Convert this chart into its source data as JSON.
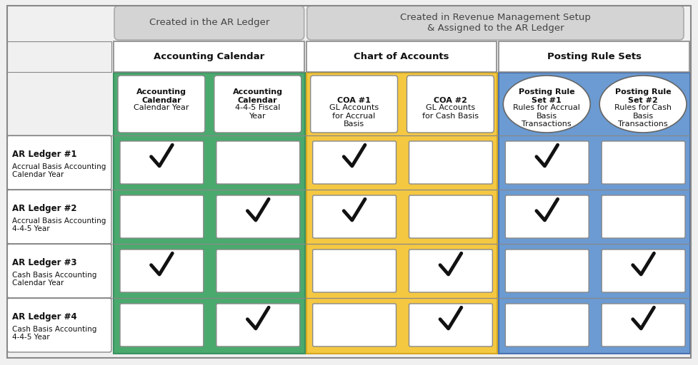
{
  "title_left": "Created in the AR Ledger",
  "title_right": "Created in Revenue Management Setup\n& Assigned to the AR Ledger",
  "section_headers": [
    "Accounting Calendar",
    "Chart of Accounts",
    "Posting Rule Sets"
  ],
  "col_bold": [
    "Accounting\nCalendar",
    "Accounting\nCalendar",
    "COA #1",
    "COA #2",
    "Posting Rule\nSet #1",
    "Posting Rule\nSet #2"
  ],
  "col_normal": [
    "Calendar Year",
    "4-4-5 Fiscal\nYear",
    "GL Accounts\nfor Accrual\nBasis",
    "GL Accounts\nfor Cash Basis",
    "Rules for Accrual\nBasis\nTransactions",
    "Rules for Cash\nBasis\nTransactions"
  ],
  "row_labels_bold": [
    "AR Ledger #1",
    "AR Ledger #2",
    "AR Ledger #3",
    "AR Ledger #4"
  ],
  "row_labels_normal": [
    "Accrual Basis Accounting\nCalendar Year",
    "Accrual Basis Accounting\n4-4-5 Year",
    "Cash Basis Accounting\nCalendar Year",
    "Cash Basis Accounting\n4-4-5 Year"
  ],
  "checks": [
    [
      true,
      false,
      true,
      false,
      true,
      false
    ],
    [
      false,
      true,
      true,
      false,
      true,
      false
    ],
    [
      true,
      false,
      false,
      true,
      false,
      true
    ],
    [
      false,
      true,
      false,
      true,
      false,
      true
    ]
  ],
  "bg_color": "#f0f0f0",
  "banner_bg": "#d4d4d4",
  "green_color": "#4aaa6e",
  "yellow_color": "#f5c842",
  "blue_color": "#6b9bd2",
  "white": "#ffffff",
  "border_color": "#888888",
  "text_dark": "#111111"
}
